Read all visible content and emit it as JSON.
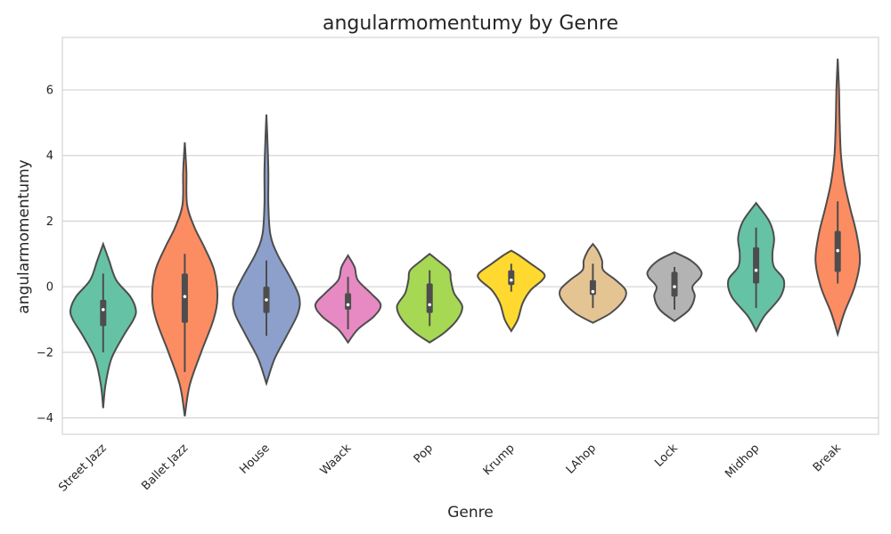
{
  "chart_data": {
    "type": "violin",
    "title": "angularmomentumy by Genre",
    "xlabel": "Genre",
    "ylabel": "angularmomentumy",
    "ylim": [
      -4.5,
      7.6
    ],
    "yticks": [
      -4,
      -2,
      0,
      2,
      4,
      6
    ],
    "ytick_labels": [
      "−4",
      "−2",
      "0",
      "2",
      "4",
      "6"
    ],
    "grid": "horizontal",
    "categories": [
      "Street Jazz",
      "Ballet Jazz",
      "House",
      "Waack",
      "Pop",
      "Krump",
      "LAhop",
      "Lock",
      "Midhop",
      "Break"
    ],
    "colors": [
      "#66c2a5",
      "#fc8d62",
      "#8da0cb",
      "#e78ac3",
      "#a6d854",
      "#ffd92f",
      "#e5c494",
      "#b3b3b3",
      "#66c2a5",
      "#fc8d62"
    ],
    "series": [
      {
        "q1": -1.2,
        "median": -0.7,
        "q3": -0.4,
        "whisker_low": -2.0,
        "whisker_high": 0.4,
        "density": [
          [
            -3.7,
            0.0
          ],
          [
            -3.0,
            0.07
          ],
          [
            -2.2,
            0.25
          ],
          [
            -1.5,
            0.62
          ],
          [
            -1.0,
            0.93
          ],
          [
            -0.7,
            1.0
          ],
          [
            -0.3,
            0.83
          ],
          [
            0.2,
            0.4
          ],
          [
            0.8,
            0.18
          ],
          [
            1.3,
            0.0
          ]
        ]
      },
      {
        "q1": -1.1,
        "median": -0.3,
        "q3": 0.4,
        "whisker_low": -2.6,
        "whisker_high": 1.0,
        "density": [
          [
            -3.95,
            0.0
          ],
          [
            -3.0,
            0.15
          ],
          [
            -2.0,
            0.5
          ],
          [
            -1.0,
            0.88
          ],
          [
            -0.3,
            1.0
          ],
          [
            0.5,
            0.9
          ],
          [
            1.2,
            0.6
          ],
          [
            1.8,
            0.3
          ],
          [
            2.5,
            0.07
          ],
          [
            3.5,
            0.05
          ],
          [
            4.4,
            0.0
          ]
        ]
      },
      {
        "q1": -0.8,
        "median": -0.4,
        "q3": 0.0,
        "whisker_low": -1.5,
        "whisker_high": 0.8,
        "density": [
          [
            -2.95,
            0.0
          ],
          [
            -2.2,
            0.25
          ],
          [
            -1.5,
            0.62
          ],
          [
            -0.8,
            0.97
          ],
          [
            -0.3,
            1.0
          ],
          [
            0.3,
            0.72
          ],
          [
            1.0,
            0.33
          ],
          [
            1.6,
            0.12
          ],
          [
            2.5,
            0.06
          ],
          [
            3.5,
            0.06
          ],
          [
            4.5,
            0.03
          ],
          [
            5.25,
            0.0
          ]
        ]
      },
      {
        "q1": -0.7,
        "median": -0.55,
        "q3": -0.2,
        "whisker_low": -1.3,
        "whisker_high": 0.3,
        "density": [
          [
            -1.7,
            0.0
          ],
          [
            -1.3,
            0.3
          ],
          [
            -0.9,
            0.8
          ],
          [
            -0.55,
            1.0
          ],
          [
            -0.2,
            0.7
          ],
          [
            0.2,
            0.3
          ],
          [
            0.6,
            0.2
          ],
          [
            0.95,
            0.0
          ]
        ]
      },
      {
        "q1": -0.8,
        "median": -0.55,
        "q3": 0.1,
        "whisker_low": -1.2,
        "whisker_high": 0.5,
        "density": [
          [
            -1.7,
            0.0
          ],
          [
            -1.4,
            0.45
          ],
          [
            -1.0,
            0.85
          ],
          [
            -0.6,
            1.0
          ],
          [
            -0.2,
            0.75
          ],
          [
            0.2,
            0.65
          ],
          [
            0.5,
            0.6
          ],
          [
            0.8,
            0.25
          ],
          [
            1.0,
            0.0
          ]
        ]
      },
      {
        "q1": 0.05,
        "median": 0.2,
        "q3": 0.5,
        "whisker_low": -0.15,
        "whisker_high": 0.7,
        "density": [
          [
            -1.35,
            0.0
          ],
          [
            -1.0,
            0.2
          ],
          [
            -0.5,
            0.35
          ],
          [
            -0.1,
            0.6
          ],
          [
            0.2,
            0.95
          ],
          [
            0.4,
            1.0
          ],
          [
            0.7,
            0.6
          ],
          [
            0.95,
            0.25
          ],
          [
            1.1,
            0.0
          ]
        ]
      },
      {
        "q1": -0.25,
        "median": -0.15,
        "q3": 0.2,
        "whisker_low": -0.65,
        "whisker_high": 0.7,
        "density": [
          [
            -1.1,
            0.0
          ],
          [
            -0.8,
            0.55
          ],
          [
            -0.4,
            0.95
          ],
          [
            -0.1,
            1.0
          ],
          [
            0.2,
            0.7
          ],
          [
            0.5,
            0.32
          ],
          [
            0.8,
            0.28
          ],
          [
            1.1,
            0.15
          ],
          [
            1.3,
            0.0
          ]
        ]
      },
      {
        "q1": -0.3,
        "median": 0.0,
        "q3": 0.45,
        "whisker_low": -0.7,
        "whisker_high": 0.6,
        "density": [
          [
            -1.05,
            0.0
          ],
          [
            -0.7,
            0.45
          ],
          [
            -0.3,
            0.62
          ],
          [
            0.0,
            0.55
          ],
          [
            0.3,
            0.8
          ],
          [
            0.5,
            0.8
          ],
          [
            0.8,
            0.5
          ],
          [
            1.05,
            0.0
          ]
        ]
      },
      {
        "q1": 0.1,
        "median": 0.5,
        "q3": 1.2,
        "whisker_low": -0.65,
        "whisker_high": 1.8,
        "density": [
          [
            -1.35,
            0.0
          ],
          [
            -0.9,
            0.25
          ],
          [
            -0.3,
            0.75
          ],
          [
            0.2,
            0.85
          ],
          [
            0.6,
            0.55
          ],
          [
            1.0,
            0.5
          ],
          [
            1.5,
            0.55
          ],
          [
            2.0,
            0.4
          ],
          [
            2.55,
            0.0
          ]
        ]
      },
      {
        "q1": 0.45,
        "median": 1.1,
        "q3": 1.7,
        "whisker_low": 0.1,
        "whisker_high": 2.6,
        "density": [
          [
            -1.45,
            0.0
          ],
          [
            -0.8,
            0.2
          ],
          [
            0.0,
            0.52
          ],
          [
            0.8,
            0.68
          ],
          [
            1.6,
            0.58
          ],
          [
            2.4,
            0.38
          ],
          [
            3.2,
            0.2
          ],
          [
            4.0,
            0.1
          ],
          [
            5.0,
            0.06
          ],
          [
            6.0,
            0.04
          ],
          [
            6.95,
            0.0
          ]
        ]
      }
    ]
  }
}
